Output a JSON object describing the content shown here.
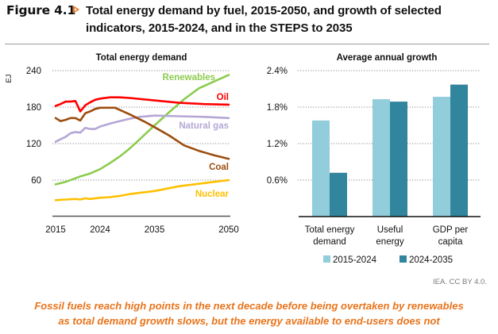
{
  "figure": {
    "label": "Figure 4.1",
    "title": "Total energy demand by fuel, 2015-2050, and growth of selected indicators, 2015-2024, and in the STEPS to 2035",
    "source": "IEA. CC BY 4.0.",
    "caption_line1": "Fossil fuels reach high points in the next decade before being overtaken by renewables",
    "caption_line2": "as total demand growth slows, but the energy available to end-users does not",
    "accent_color": "#e8741c"
  },
  "chart_data": [
    {
      "type": "line",
      "title": "Total energy demand",
      "xlabel": "",
      "ylabel": "EJ",
      "xlim": [
        2015,
        2050
      ],
      "ylim": [
        0,
        240
      ],
      "xticks": [
        2015,
        2024,
        2035,
        2050
      ],
      "yticks": [
        60,
        120,
        180,
        240
      ],
      "grid": true,
      "legend": "inline-labels",
      "series": [
        {
          "name": "Oil",
          "color": "#ff0000",
          "x": [
            2015,
            2016,
            2017,
            2018,
            2019,
            2020,
            2021,
            2022,
            2023,
            2024,
            2026,
            2028,
            2030,
            2035,
            2040,
            2045,
            2050
          ],
          "values": [
            182,
            185,
            189,
            189,
            190,
            173,
            183,
            188,
            192,
            194,
            196,
            196,
            195,
            191,
            187,
            185,
            184
          ]
        },
        {
          "name": "Coal",
          "color": "#9c4d0e",
          "x": [
            2015,
            2016,
            2017,
            2018,
            2019,
            2020,
            2021,
            2022,
            2023,
            2024,
            2026,
            2027,
            2030,
            2033,
            2035,
            2038,
            2041,
            2044,
            2047,
            2050
          ],
          "values": [
            162,
            157,
            159,
            162,
            162,
            158,
            170,
            173,
            177,
            179,
            179,
            179,
            168,
            156,
            147,
            133,
            117,
            108,
            101,
            95
          ]
        },
        {
          "name": "Natural gas",
          "color": "#b4a7d6",
          "x": [
            2015,
            2016,
            2017,
            2018,
            2019,
            2020,
            2021,
            2022,
            2023,
            2024,
            2026,
            2028,
            2030,
            2032,
            2035,
            2040,
            2045,
            2050
          ],
          "values": [
            123,
            127,
            131,
            137,
            139,
            138,
            146,
            144,
            144,
            148,
            153,
            157,
            161,
            164,
            166,
            165,
            164,
            162
          ]
        },
        {
          "name": "Renewables",
          "color": "#8ccc4e",
          "x": [
            2015,
            2017,
            2019,
            2020,
            2022,
            2024,
            2026,
            2028,
            2030,
            2032,
            2035,
            2038,
            2041,
            2044,
            2047,
            2050
          ],
          "values": [
            53,
            57,
            63,
            66,
            71,
            78,
            88,
            99,
            112,
            127,
            150,
            172,
            193,
            211,
            222,
            233
          ]
        },
        {
          "name": "Nuclear",
          "color": "#ffc000",
          "x": [
            2015,
            2017,
            2019,
            2020,
            2021,
            2022,
            2024,
            2026,
            2028,
            2030,
            2035,
            2040,
            2045,
            2050
          ],
          "values": [
            27,
            28,
            29,
            28,
            30,
            29,
            31,
            32,
            34,
            37,
            42,
            50,
            55,
            60
          ]
        }
      ]
    },
    {
      "type": "bar",
      "title": "Average annual growth",
      "xlabel": "",
      "ylabel": "",
      "ylim": [
        0,
        2.4
      ],
      "yticks": [
        "0.6%",
        "1.2%",
        "1.8%",
        "2.4%"
      ],
      "ytick_values": [
        0.6,
        1.2,
        1.8,
        2.4
      ],
      "grid": true,
      "legend": "bottom",
      "categories": [
        [
          "Total energy",
          "demand"
        ],
        [
          "Useful",
          "energy"
        ],
        [
          "GDP per",
          "capita"
        ]
      ],
      "series": [
        {
          "name": "2015-2024",
          "color": "#92cddc",
          "values": [
            1.58,
            1.93,
            1.97
          ]
        },
        {
          "name": "2024-2035",
          "color": "#31859c",
          "values": [
            0.72,
            1.89,
            2.17
          ]
        }
      ]
    }
  ]
}
